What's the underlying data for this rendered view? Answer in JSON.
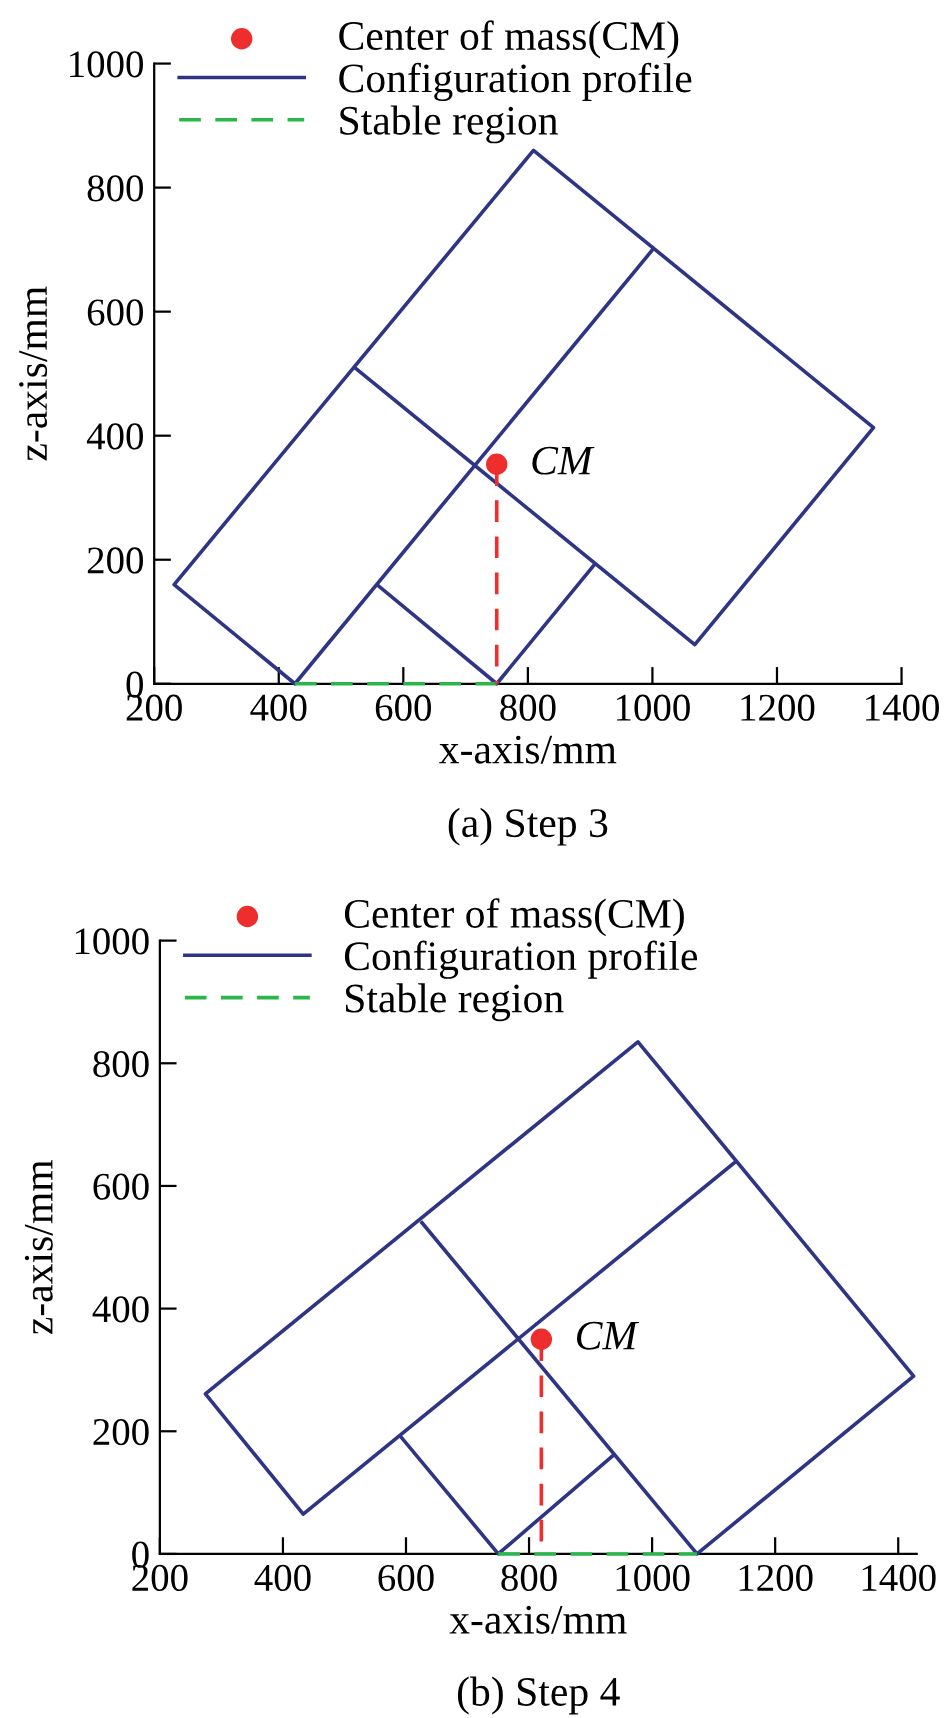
{
  "chart_data": [
    {
      "type": "line",
      "xlabel": "x-axis/mm",
      "ylabel": "z-axis/mm",
      "xlim": [
        200,
        1400
      ],
      "ylim": [
        0,
        1000
      ],
      "xticks": [
        200,
        400,
        600,
        800,
        1000,
        1200,
        1400
      ],
      "yticks": [
        0,
        200,
        400,
        600,
        800,
        1000
      ],
      "legend": "top left",
      "grid": false,
      "annotations": [
        {
          "text": "CM",
          "x": 750,
          "y": 354
        },
        "(a) Step 3"
      ],
      "series": [
        {
          "name": "Center of mass(CM)",
          "type": "scatter",
          "marker": "circle",
          "color": "#ee2d2d",
          "x": [
            750
          ],
          "values": [
            354
          ]
        },
        {
          "name": "Configuration profile",
          "line_style": "solid",
          "color": "#2e3585",
          "x": [
            1002,
            426,
            232,
            809,
            1355,
            1068,
            523,
            null,
            560,
            750,
            905
          ],
          "values": [
            702,
            0,
            160,
            860,
            413,
            63,
            509,
            null,
            158,
            0,
            190
          ]
        },
        {
          "name": "Stable region",
          "line_style": "dashed",
          "color": "#2bb64a",
          "x": [
            426,
            750
          ],
          "values": [
            0,
            0
          ]
        },
        {
          "line_style": "dashed",
          "color": "#ee2d2d",
          "x": [
            750,
            750
          ],
          "values": [
            354,
            0
          ]
        }
      ]
    },
    {
      "type": "line",
      "xlabel": "x-axis/mm",
      "ylabel": "z-axis/mm",
      "xlim": [
        200,
        1430
      ],
      "ylim": [
        0,
        1000
      ],
      "xticks": [
        200,
        400,
        600,
        800,
        1000,
        1200,
        1400
      ],
      "yticks": [
        0,
        200,
        400,
        600,
        800,
        1000
      ],
      "legend": "top left",
      "grid": false,
      "annotations": [
        {
          "text": "CM",
          "x": 820,
          "y": 350
        },
        "(b) Step 4"
      ],
      "series": [
        {
          "name": "Center of mass(CM)",
          "type": "scatter",
          "marker": "circle",
          "color": "#ee2d2d",
          "x": [
            820
          ],
          "values": [
            350
          ]
        },
        {
          "name": "Configuration profile",
          "line_style": "solid",
          "color": "#2e3585",
          "x": [
            1134,
            433,
            274,
            977,
            1425,
            1073,
            626,
            null,
            590,
            750,
            937
          ],
          "values": [
            638,
            65,
            261,
            835,
            290,
            0,
            540,
            null,
            193,
            0,
            161
          ]
        },
        {
          "name": "Stable region",
          "line_style": "dashed",
          "color": "#2bb64a",
          "x": [
            750,
            1073
          ],
          "values": [
            0,
            0
          ]
        },
        {
          "line_style": "dashed",
          "color": "#ee2d2d",
          "x": [
            820,
            820
          ],
          "values": [
            350,
            0
          ]
        }
      ]
    }
  ]
}
